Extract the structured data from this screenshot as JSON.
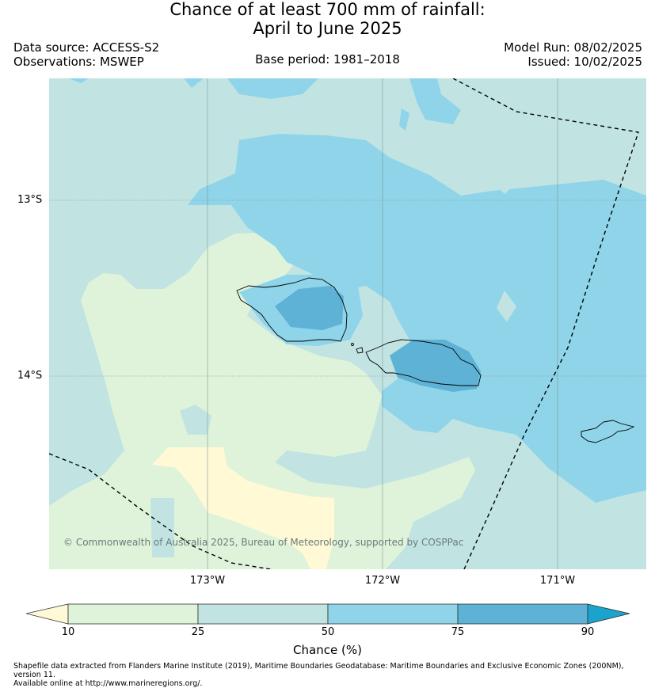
{
  "title": {
    "line1": "Chance of at least 700 mm of rainfall:",
    "line2": "April to June 2025"
  },
  "meta": {
    "data_source": "Data source: ACCESS-S2",
    "observations": "Observations: MSWEP",
    "base_period": "Base period: 1981–2018",
    "model_run": "Model Run: 08/02/2025",
    "issued": "Issued: 10/02/2025"
  },
  "map": {
    "latitude_labels": [
      "13°S",
      "14°S"
    ],
    "longitude_labels": [
      "173°W",
      "172°W",
      "171°W"
    ],
    "copyright": "© Commonwealth of Australia 2025, Bureau of Meteorology, supported by COSPPac",
    "colors": {
      "lt10": "#fff9d6",
      "c10_25": "#def3da",
      "c25_50": "#c1e4e3",
      "c50_75": "#8fd4e9",
      "c75_90": "#5eb2d6",
      "gt90": "#1aa3cc"
    }
  },
  "colorbar": {
    "ticks": [
      "10",
      "25",
      "50",
      "75",
      "90"
    ],
    "label": "Chance (%)"
  },
  "footnote": {
    "line1": "Shapefile data extracted from Flanders Marine Institute (2019), Maritime Boundaries Geodatabase: Maritime Boundaries and Exclusive Economic Zones (200NM), version 11.",
    "line2": "Available online at http://www.marineregions.org/."
  }
}
